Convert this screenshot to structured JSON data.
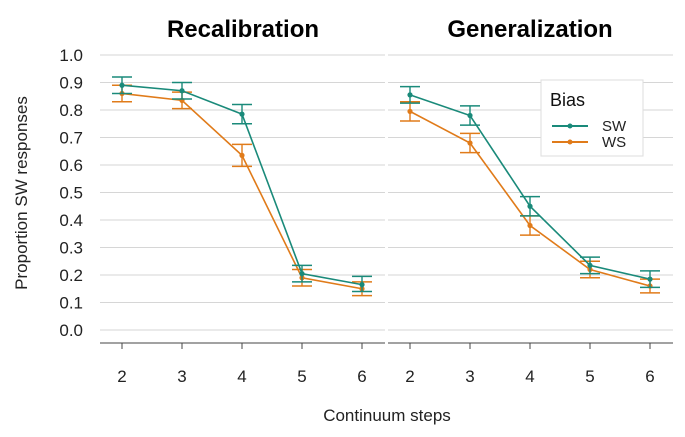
{
  "chart_data": {
    "type": "line",
    "ylabel": "Proportion SW responses",
    "xlabel": "Continuum steps",
    "ylim": [
      0.0,
      1.0
    ],
    "yticks": [
      "0.0",
      "0.1",
      "0.2",
      "0.3",
      "0.4",
      "0.5",
      "0.6",
      "0.7",
      "0.8",
      "0.9",
      "1.0"
    ],
    "xticks": [
      "2",
      "3",
      "4",
      "5",
      "6"
    ],
    "x": [
      2,
      3,
      4,
      5,
      6
    ],
    "legend": {
      "title": "Bias",
      "position": "top-right",
      "entries": [
        "SW",
        "WS"
      ]
    },
    "colors": {
      "SW": "#1a8a7a",
      "WS": "#e07b1a"
    },
    "panels": [
      {
        "title": "Recalibration",
        "series": [
          {
            "name": "SW",
            "values": [
              0.89,
              0.87,
              0.785,
              0.205,
              0.165
            ],
            "err_low": [
              0.86,
              0.84,
              0.75,
              0.175,
              0.14
            ],
            "err_high": [
              0.92,
              0.9,
              0.82,
              0.235,
              0.195
            ]
          },
          {
            "name": "WS",
            "values": [
              0.86,
              0.835,
              0.635,
              0.19,
              0.15
            ],
            "err_low": [
              0.83,
              0.805,
              0.595,
              0.16,
              0.125
            ],
            "err_high": [
              0.89,
              0.865,
              0.675,
              0.22,
              0.175
            ]
          }
        ]
      },
      {
        "title": "Generalization",
        "series": [
          {
            "name": "SW",
            "values": [
              0.855,
              0.78,
              0.45,
              0.235,
              0.185
            ],
            "err_low": [
              0.825,
              0.745,
              0.415,
              0.205,
              0.155
            ],
            "err_high": [
              0.885,
              0.815,
              0.485,
              0.265,
              0.215
            ]
          },
          {
            "name": "WS",
            "values": [
              0.795,
              0.68,
              0.38,
              0.22,
              0.16
            ],
            "err_low": [
              0.76,
              0.645,
              0.345,
              0.19,
              0.135
            ],
            "err_high": [
              0.83,
              0.715,
              0.415,
              0.25,
              0.185
            ]
          }
        ]
      }
    ]
  }
}
